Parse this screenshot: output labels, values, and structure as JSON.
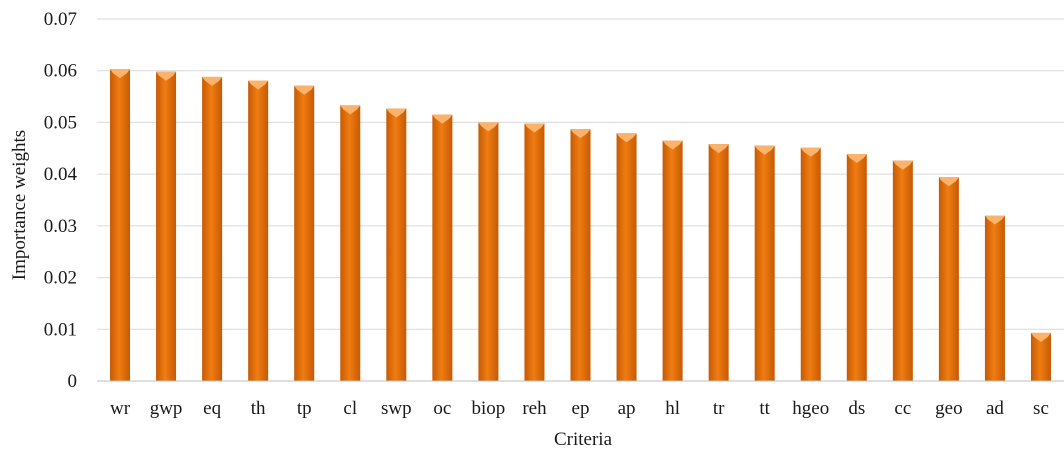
{
  "chart_data": {
    "type": "bar",
    "title": "",
    "xlabel": "Criteria",
    "ylabel": "Importance weights",
    "categories": [
      "wr",
      "gwp",
      "eq",
      "th",
      "tp",
      "cl",
      "swp",
      "oc",
      "biop",
      "reh",
      "ep",
      "ap",
      "hl",
      "tr",
      "tt",
      "hgeo",
      "ds",
      "cc",
      "geo",
      "ad",
      "sc"
    ],
    "values": [
      0.0603,
      0.0598,
      0.0588,
      0.0581,
      0.0571,
      0.0533,
      0.0527,
      0.0515,
      0.05,
      0.0498,
      0.0487,
      0.0479,
      0.0465,
      0.0458,
      0.0455,
      0.0451,
      0.0439,
      0.0426,
      0.0394,
      0.032,
      0.0093
    ],
    "ylim": [
      0,
      0.07
    ],
    "yticks": [
      "0",
      "0.01",
      "0.02",
      "0.03",
      "0.04",
      "0.05",
      "0.06",
      "0.07"
    ],
    "grid": true,
    "legend": "none",
    "bar_color": "#F07D12",
    "bar_highlight": "#FBB36B",
    "bar_dark": "#C65A04"
  }
}
